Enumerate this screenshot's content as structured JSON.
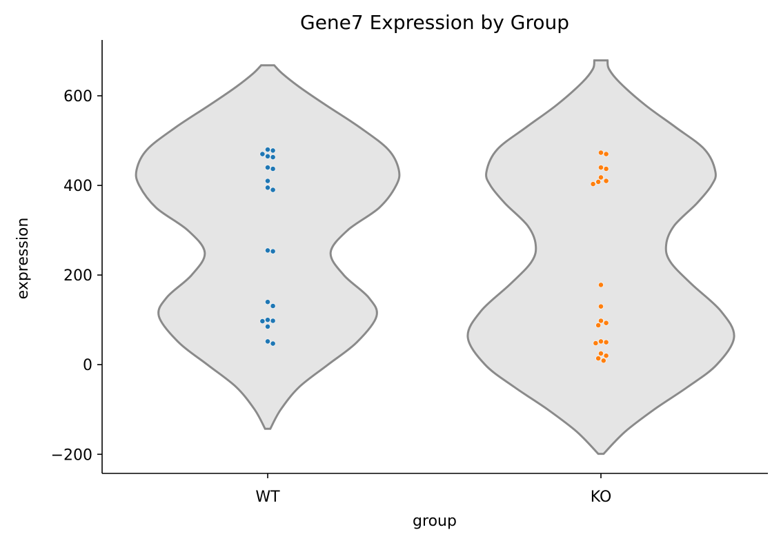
{
  "chart_data": {
    "type": "violin",
    "title": "Gene7 Expression by Group",
    "xlabel": "group",
    "ylabel": "expression",
    "categories": [
      "WT",
      "KO"
    ],
    "ylim": [
      -240,
      720
    ],
    "yticks": [
      -200,
      0,
      200,
      400,
      600
    ],
    "ytick_labels": [
      "−200",
      "0",
      "200",
      "400",
      "600"
    ],
    "grid": false,
    "violin_fill": "#e5e5e5",
    "violin_edge": "#8a8a8a",
    "groups": [
      {
        "name": "WT",
        "color": "#1f77b4",
        "range": [
          -143,
          668
        ],
        "profile": [
          [
            -143,
            0.02
          ],
          [
            -100,
            0.1
          ],
          [
            -50,
            0.24
          ],
          [
            0,
            0.46
          ],
          [
            50,
            0.68
          ],
          [
            108,
            0.83
          ],
          [
            150,
            0.77
          ],
          [
            200,
            0.58
          ],
          [
            250,
            0.48
          ],
          [
            300,
            0.61
          ],
          [
            350,
            0.85
          ],
          [
            400,
            0.98
          ],
          [
            435,
            1.0
          ],
          [
            480,
            0.92
          ],
          [
            530,
            0.7
          ],
          [
            580,
            0.44
          ],
          [
            620,
            0.24
          ],
          [
            650,
            0.11
          ],
          [
            668,
            0.05
          ]
        ],
        "points": [
          480,
          478,
          465,
          470,
          463,
          440,
          437,
          410,
          395,
          390,
          255,
          253,
          140,
          131,
          100,
          98,
          97,
          85,
          52,
          47
        ]
      },
      {
        "name": "KO",
        "color": "#ff7f0e",
        "range": [
          -199,
          679
        ],
        "profile": [
          [
            -199,
            0.02
          ],
          [
            -150,
            0.18
          ],
          [
            -100,
            0.4
          ],
          [
            -50,
            0.65
          ],
          [
            0,
            0.87
          ],
          [
            62,
            1.0
          ],
          [
            120,
            0.9
          ],
          [
            180,
            0.68
          ],
          [
            230,
            0.52
          ],
          [
            268,
            0.49
          ],
          [
            310,
            0.55
          ],
          [
            360,
            0.72
          ],
          [
            400,
            0.83
          ],
          [
            430,
            0.86
          ],
          [
            480,
            0.78
          ],
          [
            530,
            0.56
          ],
          [
            580,
            0.33
          ],
          [
            630,
            0.14
          ],
          [
            660,
            0.06
          ],
          [
            679,
            0.05
          ]
        ],
        "points": [
          473,
          470,
          440,
          437,
          418,
          410,
          408,
          403,
          178,
          130,
          98,
          93,
          88,
          52,
          50,
          48,
          25,
          20,
          14,
          9
        ]
      }
    ]
  }
}
